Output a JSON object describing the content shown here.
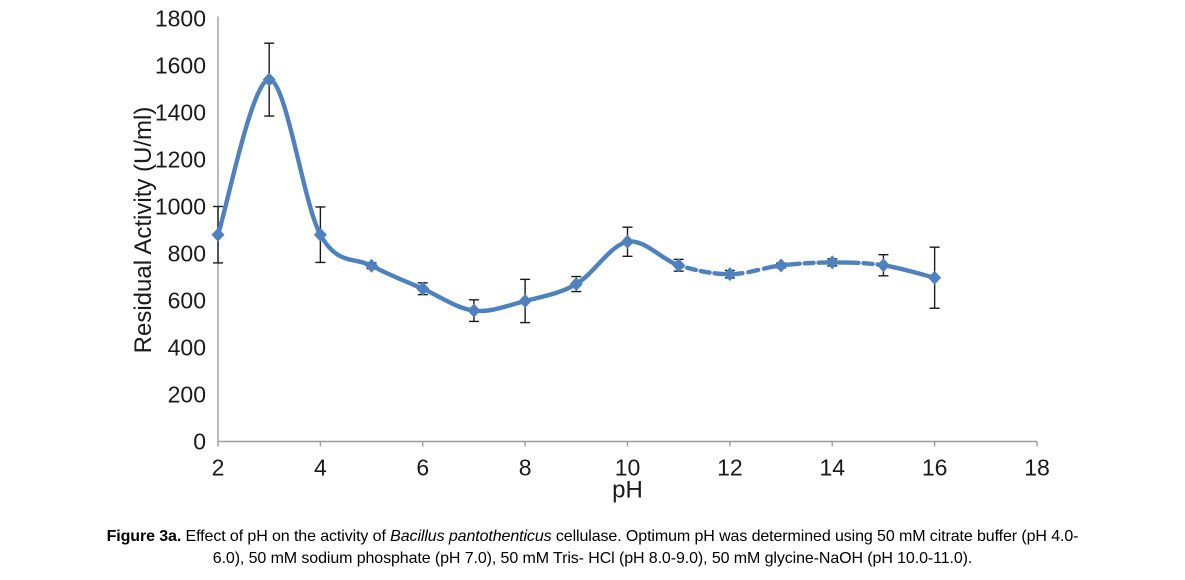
{
  "figure": {
    "caption": {
      "line1_segments": [
        {
          "text": "Figure 3a.",
          "style": "bold"
        },
        {
          "text": " Effect of pH on the activity of ",
          "style": "normal"
        },
        {
          "text": "Bacillus pantothenticus",
          "style": "italic"
        },
        {
          "text": " cellulase. Optimum pH was determined using 50 mM citrate buffer (pH 4.0-",
          "style": "normal"
        }
      ],
      "line2": "6.0), 50 mM sodium phosphate (pH 7.0), 50 mM Tris- HCl (pH 8.0-9.0), 50 mM glycine-NaOH (pH 10.0-11.0)."
    }
  },
  "chart_data": {
    "type": "line",
    "title": "",
    "xlabel": "pH",
    "ylabel": "Residual Activity (U/ml)",
    "x": [
      2,
      3,
      4,
      5,
      6,
      7,
      8,
      9,
      10,
      11,
      12,
      13,
      14,
      15,
      16
    ],
    "series": [
      {
        "name": "Residual activity",
        "values": [
          880,
          1540,
          880,
          748,
          650,
          557,
          598,
          670,
          850,
          750,
          712,
          749,
          762,
          750,
          697
        ],
        "errors": [
          120,
          155,
          118,
          12,
          25,
          46,
          92,
          32,
          62,
          25,
          16,
          10,
          15,
          45,
          130
        ]
      }
    ],
    "xlim": [
      2,
      18
    ],
    "ylim": [
      0,
      1800
    ],
    "xticks": [
      2,
      4,
      6,
      8,
      10,
      12,
      14,
      16,
      18
    ],
    "yticks": [
      0,
      200,
      400,
      600,
      800,
      1000,
      1200,
      1400,
      1600,
      1800
    ],
    "grid": false,
    "legend": "none",
    "marker": "diamond",
    "line_style": "smoothed thick line with long-dash / dot-dot gaps",
    "line_color": "#4f81bd",
    "error_bar_color": "#1a1a1a",
    "axis_color": "#9d9d9d",
    "tick_label_color": "#1a1a1a"
  }
}
